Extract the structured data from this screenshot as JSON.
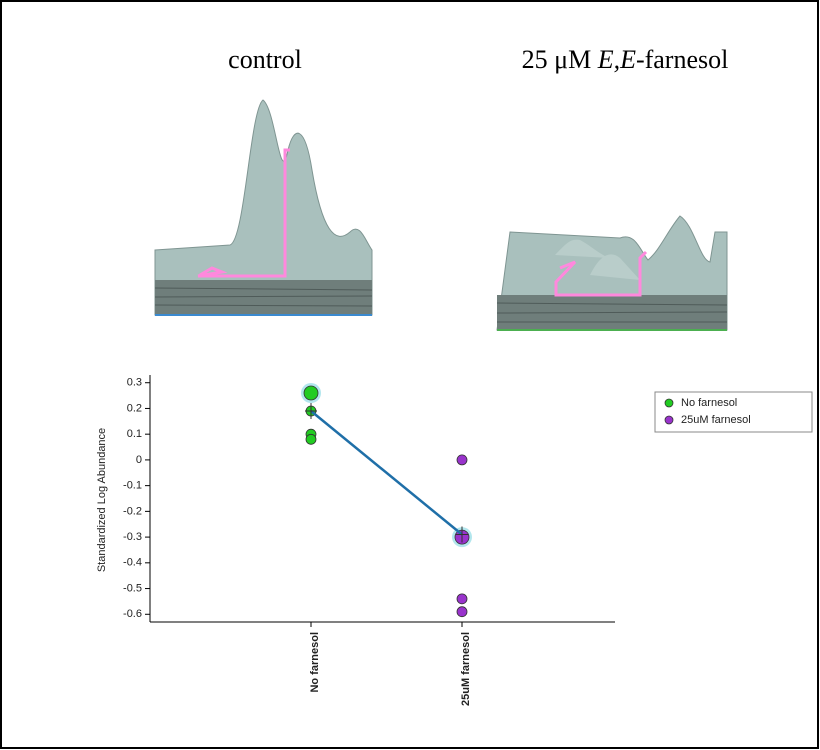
{
  "panels": [
    {
      "label": [
        "control"
      ]
    },
    {
      "label": [
        "25 μM ",
        "E,E",
        "-farnesol"
      ]
    }
  ],
  "chart_data": {
    "type": "scatter",
    "y_label": "Standardized Log Abundance",
    "categories": [
      "No farnesol",
      "25uM farnesol"
    ],
    "series": [
      {
        "name": "No farnesol",
        "color": "#22cc22",
        "values": [
          0.26,
          0.19,
          0.1,
          0.08
        ],
        "highlight_index": 0
      },
      {
        "name": "25uM farnesol",
        "color": "#9933cc",
        "values": [
          0.0,
          -0.3,
          -0.54,
          -0.59
        ],
        "highlight_index": 1
      }
    ],
    "trend_line": {
      "values": [
        0.19,
        -0.29
      ],
      "color": "#1f6fa8"
    },
    "ylim": [
      -0.63,
      0.33
    ],
    "yticks": [
      0.3,
      0.2,
      0.1,
      0,
      -0.1,
      -0.2,
      -0.3,
      -0.4,
      -0.5,
      -0.6
    ],
    "legend": "top-right"
  }
}
